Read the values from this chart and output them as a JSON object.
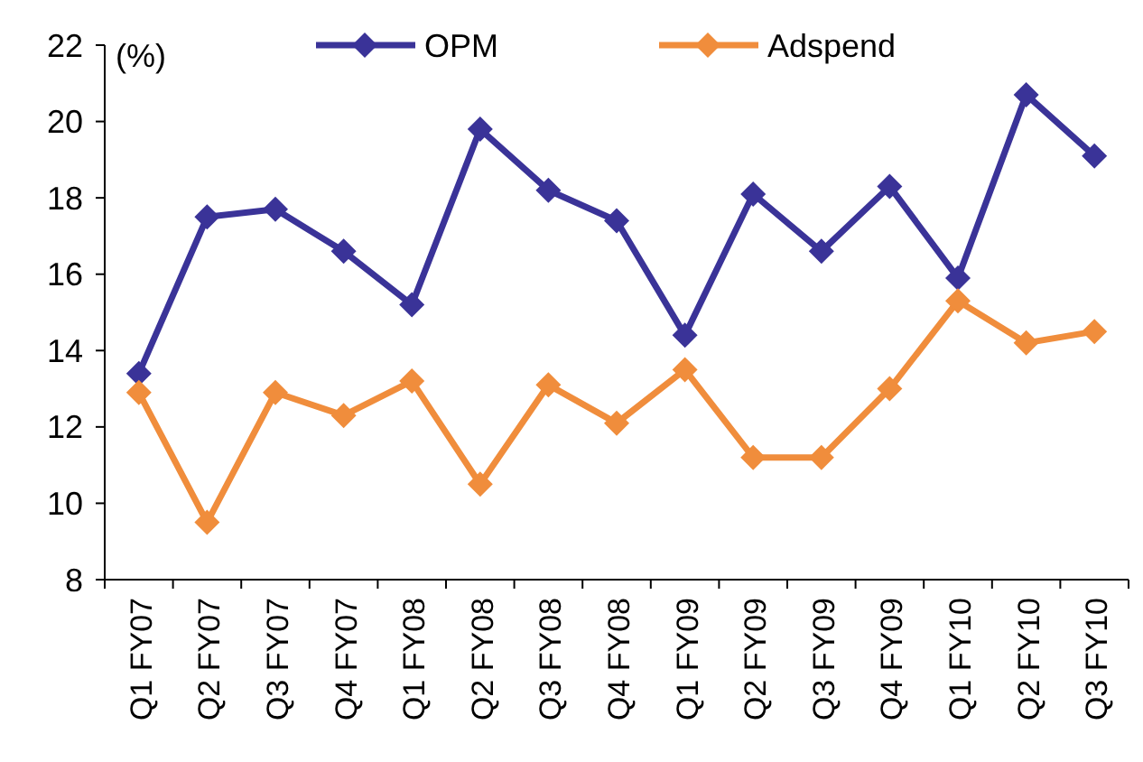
{
  "chart_data": {
    "type": "line",
    "ylabel": "(%)",
    "categories": [
      "Q1 FY07",
      "Q2 FY07",
      "Q3 FY07",
      "Q4 FY07",
      "Q1 FY08",
      "Q2 FY08",
      "Q3 FY08",
      "Q4 FY08",
      "Q1 FY09",
      "Q2 FY09",
      "Q3 FY09",
      "Q4 FY09",
      "Q1 FY10",
      "Q2 FY10",
      "Q3 FY10"
    ],
    "series": [
      {
        "name": "OPM",
        "color": "#3a3398",
        "values": [
          13.4,
          17.5,
          17.7,
          16.6,
          15.2,
          19.8,
          18.2,
          17.4,
          14.4,
          18.1,
          16.6,
          18.3,
          15.9,
          20.7,
          19.1
        ]
      },
      {
        "name": "Adspend",
        "color": "#f08d3c",
        "values": [
          12.9,
          9.5,
          12.9,
          12.3,
          13.2,
          10.5,
          13.1,
          12.1,
          13.5,
          11.2,
          11.2,
          13.0,
          15.3,
          14.2,
          14.5
        ]
      }
    ],
    "ylim": [
      8,
      22
    ],
    "yticks": [
      8,
      10,
      12,
      14,
      16,
      18,
      20,
      22
    ],
    "grid": false,
    "legend": "top",
    "marker": "diamond",
    "line_style": "solid"
  }
}
